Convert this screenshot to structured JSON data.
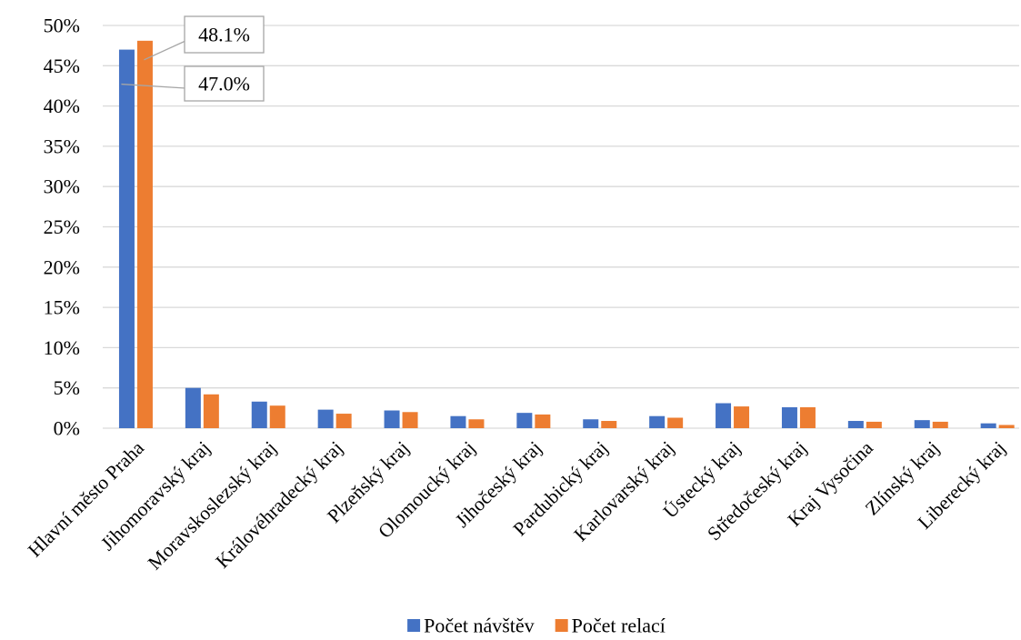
{
  "chart_data": {
    "type": "bar",
    "categories": [
      "Hlavní město Praha",
      "Jihomoravský kraj",
      "Moravskoslezský kraj",
      "Královéhradecký kraj",
      "Plzeňský kraj",
      "Olomoucký kraj",
      "Jihočeský kraj",
      "Pardubický kraj",
      "Karlovarský kraj",
      "Ústecký kraj",
      "Středočeský kraj",
      "Kraj Vysočina",
      "Zlínský kraj",
      "Liberecký kraj"
    ],
    "series": [
      {
        "name": "Počet návštěv",
        "color": "#4472C4",
        "values": [
          47.0,
          5.0,
          3.3,
          2.3,
          2.2,
          1.5,
          1.9,
          1.1,
          1.5,
          3.1,
          2.6,
          0.9,
          1.0,
          0.6
        ]
      },
      {
        "name": "Počet relací",
        "color": "#ED7D31",
        "values": [
          48.1,
          4.2,
          2.8,
          1.8,
          2.0,
          1.1,
          1.7,
          0.9,
          1.3,
          2.7,
          2.6,
          0.8,
          0.8,
          0.4
        ]
      }
    ],
    "ylim": [
      0,
      50
    ],
    "y_ticks": [
      {
        "value": 0,
        "label": "0%"
      },
      {
        "value": 5,
        "label": "5%"
      },
      {
        "value": 10,
        "label": "10%"
      },
      {
        "value": 15,
        "label": "15%"
      },
      {
        "value": 20,
        "label": "20%"
      },
      {
        "value": 25,
        "label": "25%"
      },
      {
        "value": 30,
        "label": "30%"
      },
      {
        "value": 35,
        "label": "35%"
      },
      {
        "value": 40,
        "label": "40%"
      },
      {
        "value": 45,
        "label": "45%"
      },
      {
        "value": 50,
        "label": "50%"
      }
    ],
    "data_labels": [
      {
        "series": 1,
        "category": 0,
        "text": "48.1%"
      },
      {
        "series": 0,
        "category": 0,
        "text": "47.0%"
      }
    ],
    "grid": true,
    "gridline_color": "#D9D9D9",
    "callout_border_color": "#A6A6A6",
    "legend_position": "bottom"
  }
}
